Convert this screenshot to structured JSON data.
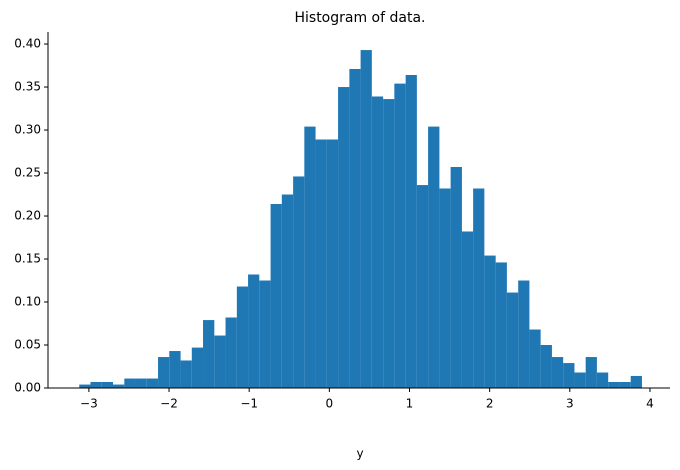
{
  "chart_data": {
    "type": "histogram",
    "title": "Histogram of data.",
    "x_label": "y",
    "color": "#1f77b4",
    "bins": [
      -3.12,
      -2.98,
      -2.839,
      -2.699,
      -2.558,
      -2.418,
      -2.278,
      -2.137,
      -1.997,
      -1.856,
      -1.716,
      -1.576,
      -1.435,
      -1.295,
      -1.154,
      -1.014,
      -0.874,
      -0.733,
      -0.593,
      -0.452,
      -0.312,
      -0.172,
      -0.031,
      0.109,
      0.25,
      0.39,
      0.53,
      0.671,
      0.811,
      0.952,
      1.092,
      1.232,
      1.373,
      1.513,
      1.654,
      1.794,
      1.934,
      2.075,
      2.215,
      2.356,
      2.496,
      2.636,
      2.777,
      2.917,
      3.058,
      3.198,
      3.338,
      3.479,
      3.619,
      3.76,
      3.9
    ],
    "values": [
      0.004,
      0.007,
      0.007,
      0.004,
      0.011,
      0.011,
      0.011,
      0.036,
      0.043,
      0.032,
      0.047,
      0.079,
      0.061,
      0.082,
      0.118,
      0.132,
      0.125,
      0.214,
      0.225,
      0.246,
      0.304,
      0.289,
      0.289,
      0.35,
      0.371,
      0.393,
      0.339,
      0.336,
      0.354,
      0.364,
      0.236,
      0.304,
      0.232,
      0.257,
      0.182,
      0.232,
      0.154,
      0.146,
      0.111,
      0.125,
      0.068,
      0.05,
      0.036,
      0.029,
      0.018,
      0.036,
      0.018,
      0.007,
      0.007,
      0.014
    ],
    "xlim": [
      -3.51,
      4.25
    ],
    "ylim": [
      0,
      0.414
    ],
    "xticks": [
      {
        "value": -3,
        "label": "−3"
      },
      {
        "value": -2,
        "label": "−2"
      },
      {
        "value": -1,
        "label": "−1"
      },
      0,
      1,
      2,
      3,
      4
    ],
    "yticks": [
      {
        "value": 0,
        "label": "0.00"
      },
      {
        "value": 0.05,
        "label": "0.05"
      },
      {
        "value": 0.1,
        "label": "0.10"
      },
      {
        "value": 0.15,
        "label": "0.15"
      },
      {
        "value": 0.2,
        "label": "0.20"
      },
      {
        "value": 0.25,
        "label": "0.25"
      },
      {
        "value": 0.3,
        "label": "0.30"
      },
      {
        "value": 0.35,
        "label": "0.35"
      },
      {
        "value": 0.4,
        "label": "0.40"
      }
    ]
  }
}
